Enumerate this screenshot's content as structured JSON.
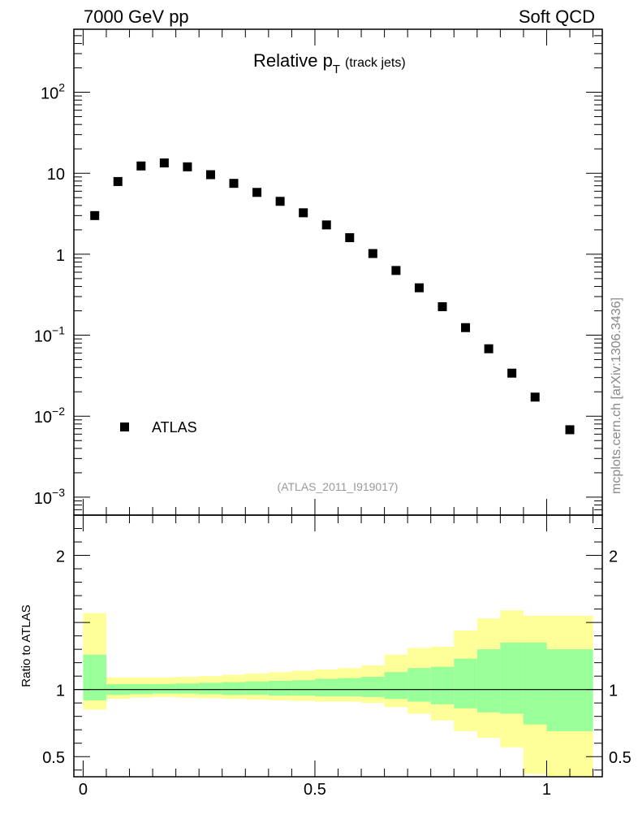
{
  "header": {
    "left": "7000 GeV pp",
    "right": "Soft QCD"
  },
  "side_label": "mcplots.cern.ch [arXiv:1306.3436]",
  "chart_data": [
    {
      "type": "scatter",
      "title_main": "Relative p",
      "title_sub": "T",
      "title_suffix": "(track jets)",
      "analysis_id": "(ATLAS_2011_I919017)",
      "legend": {
        "label": "ATLAS",
        "position": "bottom-left"
      },
      "ylog": true,
      "ylim": [
        0.0006,
        600
      ],
      "xlim": [
        -0.02,
        1.12
      ],
      "ytick_labels": [
        {
          "value": 100,
          "base": "10",
          "exp": "2"
        },
        {
          "value": 10,
          "base": "10",
          "exp": ""
        },
        {
          "value": 1,
          "base": "1",
          "exp": ""
        },
        {
          "value": 0.1,
          "base": "10",
          "exp": "−1"
        },
        {
          "value": 0.01,
          "base": "10",
          "exp": "−2"
        },
        {
          "value": 0.001,
          "base": "10",
          "exp": "−3"
        }
      ],
      "series": [
        {
          "name": "ATLAS",
          "x": [
            0.025,
            0.075,
            0.125,
            0.175,
            0.225,
            0.275,
            0.325,
            0.375,
            0.425,
            0.475,
            0.525,
            0.575,
            0.625,
            0.675,
            0.725,
            0.775,
            0.825,
            0.875,
            0.925,
            0.975,
            1.05
          ],
          "y": [
            3.0,
            7.9,
            12.3,
            13.4,
            12.0,
            9.6,
            7.5,
            5.8,
            4.5,
            3.25,
            2.3,
            1.6,
            1.02,
            0.63,
            0.385,
            0.225,
            0.124,
            0.068,
            0.034,
            0.0172,
            0.0068
          ]
        }
      ]
    },
    {
      "type": "area",
      "ylabel": "Ratio to ATLAS",
      "ylim": [
        0.35,
        2.3
      ],
      "xlim": [
        -0.02,
        1.12
      ],
      "xtick_labels": [
        {
          "value": 0,
          "label": "0"
        },
        {
          "value": 0.5,
          "label": "0.5"
        },
        {
          "value": 1,
          "label": "1"
        }
      ],
      "ytick_labels": [
        {
          "value": 0.5,
          "label": "0.5"
        },
        {
          "value": 1,
          "label": "1"
        },
        {
          "value": 2,
          "label": "2"
        }
      ],
      "band_colors": {
        "outer": "#ffff99",
        "inner": "#99ff99"
      },
      "bins": [
        {
          "lo": 0.0,
          "hi": 0.05,
          "outer": [
            0.85,
            1.57
          ],
          "inner": [
            0.92,
            1.26
          ]
        },
        {
          "lo": 0.05,
          "hi": 0.1,
          "outer": [
            0.93,
            1.09
          ],
          "inner": [
            0.96,
            1.04
          ]
        },
        {
          "lo": 0.1,
          "hi": 0.15,
          "outer": [
            0.94,
            1.09
          ],
          "inner": [
            0.965,
            1.04
          ]
        },
        {
          "lo": 0.15,
          "hi": 0.2,
          "outer": [
            0.945,
            1.09
          ],
          "inner": [
            0.97,
            1.04
          ]
        },
        {
          "lo": 0.2,
          "hi": 0.25,
          "outer": [
            0.94,
            1.095
          ],
          "inner": [
            0.97,
            1.045
          ]
        },
        {
          "lo": 0.25,
          "hi": 0.3,
          "outer": [
            0.935,
            1.1
          ],
          "inner": [
            0.965,
            1.05
          ]
        },
        {
          "lo": 0.3,
          "hi": 0.35,
          "outer": [
            0.93,
            1.11
          ],
          "inner": [
            0.96,
            1.055
          ]
        },
        {
          "lo": 0.35,
          "hi": 0.4,
          "outer": [
            0.925,
            1.12
          ],
          "inner": [
            0.96,
            1.06
          ]
        },
        {
          "lo": 0.4,
          "hi": 0.45,
          "outer": [
            0.92,
            1.13
          ],
          "inner": [
            0.955,
            1.065
          ]
        },
        {
          "lo": 0.45,
          "hi": 0.5,
          "outer": [
            0.915,
            1.14
          ],
          "inner": [
            0.955,
            1.07
          ]
        },
        {
          "lo": 0.5,
          "hi": 0.55,
          "outer": [
            0.91,
            1.15
          ],
          "inner": [
            0.95,
            1.08
          ]
        },
        {
          "lo": 0.55,
          "hi": 0.6,
          "outer": [
            0.91,
            1.16
          ],
          "inner": [
            0.95,
            1.085
          ]
        },
        {
          "lo": 0.6,
          "hi": 0.65,
          "outer": [
            0.9,
            1.18
          ],
          "inner": [
            0.945,
            1.095
          ]
        },
        {
          "lo": 0.65,
          "hi": 0.7,
          "outer": [
            0.87,
            1.26
          ],
          "inner": [
            0.93,
            1.13
          ]
        },
        {
          "lo": 0.7,
          "hi": 0.75,
          "outer": [
            0.82,
            1.31
          ],
          "inner": [
            0.91,
            1.16
          ]
        },
        {
          "lo": 0.75,
          "hi": 0.8,
          "outer": [
            0.77,
            1.32
          ],
          "inner": [
            0.89,
            1.17
          ]
        },
        {
          "lo": 0.8,
          "hi": 0.85,
          "outer": [
            0.69,
            1.44
          ],
          "inner": [
            0.86,
            1.23
          ]
        },
        {
          "lo": 0.85,
          "hi": 0.9,
          "outer": [
            0.64,
            1.53
          ],
          "inner": [
            0.83,
            1.3
          ]
        },
        {
          "lo": 0.9,
          "hi": 0.95,
          "outer": [
            0.57,
            1.59
          ],
          "inner": [
            0.82,
            1.35
          ]
        },
        {
          "lo": 0.95,
          "hi": 1.0,
          "outer": [
            0.37,
            1.55
          ],
          "inner": [
            0.74,
            1.35
          ]
        },
        {
          "lo": 1.0,
          "hi": 1.1,
          "outer": [
            0.35,
            1.55
          ],
          "inner": [
            0.69,
            1.3
          ]
        }
      ]
    }
  ]
}
